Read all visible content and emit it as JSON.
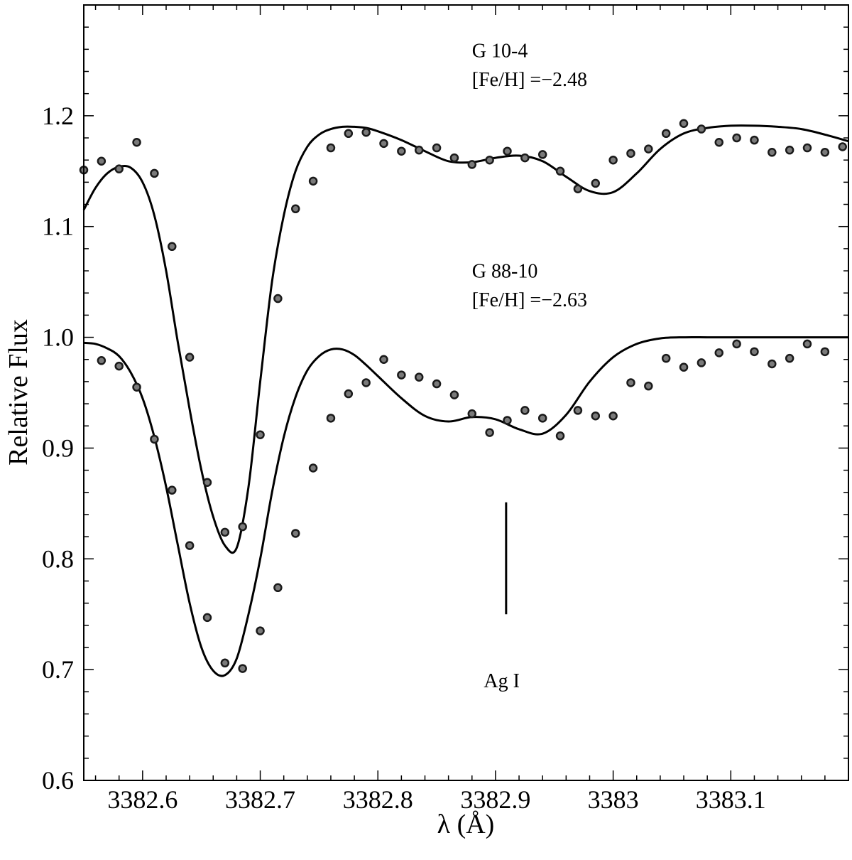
{
  "chart_data": {
    "type": "scatter",
    "xlabel": "λ (Å)",
    "ylabel": "Relative Flux",
    "xlim": [
      3382.55,
      3383.2
    ],
    "ylim": [
      0.6,
      1.3
    ],
    "x_ticks": [
      3382.6,
      3382.7,
      3382.8,
      3382.9,
      3383.0,
      3383.1
    ],
    "x_tick_labels": [
      "3382.6",
      "3382.7",
      "3382.8",
      "3382.9",
      "3383",
      "3383.1"
    ],
    "y_ticks": [
      0.6,
      0.7,
      0.8,
      0.9,
      1.0,
      1.1,
      1.2
    ],
    "y_tick_labels": [
      "0.6",
      "0.7",
      "0.8",
      "0.9",
      "1.0",
      "1.1",
      "1.2"
    ],
    "annotations": [
      {
        "text": "G 10-4",
        "x": 3382.88,
        "y": 1.253
      },
      {
        "text": "[Fe/H] =−2.48",
        "x": 3382.88,
        "y": 1.227
      },
      {
        "text": "G 88-10",
        "x": 3382.88,
        "y": 1.054
      },
      {
        "text": "[Fe/H] =−2.63",
        "x": 3382.88,
        "y": 1.028
      },
      {
        "text": "Ag I",
        "x": 3382.89,
        "y": 0.684
      }
    ],
    "line_marker": {
      "x": 3382.909,
      "y0": 0.75,
      "y1": 0.851,
      "label": "Ag I"
    },
    "series": [
      {
        "role": "observed",
        "star": "G 10-4",
        "x": [
          3382.55,
          3382.565,
          3382.58,
          3382.595,
          3382.61,
          3382.625,
          3382.64,
          3382.655,
          3382.67,
          3382.685,
          3382.7,
          3382.715,
          3382.73,
          3382.745,
          3382.76,
          3382.775,
          3382.79,
          3382.805,
          3382.82,
          3382.835,
          3382.85,
          3382.865,
          3382.88,
          3382.895,
          3382.91,
          3382.925,
          3382.94,
          3382.955,
          3382.97,
          3382.985,
          3383.0,
          3383.015,
          3383.03,
          3383.045,
          3383.06,
          3383.075,
          3383.09,
          3383.105,
          3383.12,
          3383.135,
          3383.15,
          3383.165,
          3383.18,
          3383.195
        ],
        "y": [
          1.151,
          1.159,
          1.152,
          1.176,
          1.148,
          1.082,
          0.982,
          0.869,
          0.824,
          0.829,
          0.912,
          1.035,
          1.116,
          1.141,
          1.171,
          1.184,
          1.185,
          1.175,
          1.168,
          1.169,
          1.171,
          1.162,
          1.156,
          1.16,
          1.168,
          1.162,
          1.165,
          1.15,
          1.134,
          1.139,
          1.16,
          1.166,
          1.17,
          1.184,
          1.193,
          1.188,
          1.176,
          1.18,
          1.178,
          1.167,
          1.169,
          1.171,
          1.167,
          1.172
        ]
      },
      {
        "role": "observed",
        "star": "G 88-10",
        "x": [
          3382.565,
          3382.58,
          3382.595,
          3382.61,
          3382.625,
          3382.64,
          3382.655,
          3382.67,
          3382.685,
          3382.7,
          3382.715,
          3382.73,
          3382.745,
          3382.76,
          3382.775,
          3382.79,
          3382.805,
          3382.82,
          3382.835,
          3382.85,
          3382.865,
          3382.88,
          3382.895,
          3382.91,
          3382.925,
          3382.94,
          3382.955,
          3382.97,
          3382.985,
          3383.0,
          3383.015,
          3383.03,
          3383.045,
          3383.06,
          3383.075,
          3383.09,
          3383.105,
          3383.12,
          3383.135,
          3383.15,
          3383.165,
          3383.18
        ],
        "y": [
          0.979,
          0.974,
          0.955,
          0.908,
          0.862,
          0.812,
          0.747,
          0.706,
          0.701,
          0.735,
          0.774,
          0.823,
          0.882,
          0.927,
          0.949,
          0.959,
          0.98,
          0.966,
          0.964,
          0.958,
          0.948,
          0.931,
          0.914,
          0.925,
          0.934,
          0.927,
          0.911,
          0.934,
          0.929,
          0.929,
          0.959,
          0.956,
          0.981,
          0.973,
          0.977,
          0.986,
          0.994,
          0.987,
          0.976,
          0.981,
          0.994,
          0.987
        ]
      },
      {
        "role": "synthetic",
        "star": "G 10-4",
        "x": [
          3382.55,
          3382.56,
          3382.57,
          3382.58,
          3382.59,
          3382.6,
          3382.61,
          3382.62,
          3382.63,
          3382.64,
          3382.65,
          3382.66,
          3382.67,
          3382.68,
          3382.69,
          3382.7,
          3382.71,
          3382.72,
          3382.73,
          3382.74,
          3382.75,
          3382.76,
          3382.77,
          3382.78,
          3382.79,
          3382.8,
          3382.82,
          3382.84,
          3382.86,
          3382.88,
          3382.9,
          3382.92,
          3382.94,
          3382.96,
          3382.98,
          3383.0,
          3383.02,
          3383.04,
          3383.06,
          3383.08,
          3383.1,
          3383.12,
          3383.14,
          3383.16,
          3383.18,
          3383.2
        ],
        "y": [
          1.115,
          1.135,
          1.148,
          1.154,
          1.153,
          1.14,
          1.11,
          1.06,
          0.995,
          0.935,
          0.88,
          0.838,
          0.812,
          0.81,
          0.865,
          0.96,
          1.05,
          1.11,
          1.15,
          1.172,
          1.183,
          1.188,
          1.19,
          1.19,
          1.189,
          1.186,
          1.178,
          1.168,
          1.159,
          1.158,
          1.162,
          1.164,
          1.159,
          1.145,
          1.132,
          1.131,
          1.148,
          1.17,
          1.184,
          1.189,
          1.191,
          1.191,
          1.19,
          1.188,
          1.183,
          1.177
        ]
      },
      {
        "role": "synthetic",
        "star": "G 88-10",
        "x": [
          3382.55,
          3382.56,
          3382.57,
          3382.58,
          3382.59,
          3382.6,
          3382.61,
          3382.62,
          3382.63,
          3382.64,
          3382.65,
          3382.66,
          3382.67,
          3382.68,
          3382.69,
          3382.7,
          3382.71,
          3382.72,
          3382.73,
          3382.74,
          3382.75,
          3382.76,
          3382.77,
          3382.78,
          3382.79,
          3382.8,
          3382.82,
          3382.84,
          3382.86,
          3382.88,
          3382.9,
          3382.92,
          3382.94,
          3382.96,
          3382.98,
          3383.0,
          3383.02,
          3383.04,
          3383.06,
          3383.08,
          3383.1,
          3383.12,
          3383.14,
          3383.16,
          3383.18,
          3383.2
        ],
        "y": [
          0.995,
          0.994,
          0.99,
          0.983,
          0.968,
          0.945,
          0.91,
          0.865,
          0.812,
          0.76,
          0.72,
          0.699,
          0.695,
          0.71,
          0.75,
          0.8,
          0.86,
          0.91,
          0.946,
          0.97,
          0.983,
          0.989,
          0.989,
          0.984,
          0.975,
          0.965,
          0.945,
          0.929,
          0.924,
          0.928,
          0.926,
          0.917,
          0.913,
          0.93,
          0.96,
          0.982,
          0.994,
          0.999,
          1.0,
          1.0,
          1.0,
          1.0,
          1.0,
          1.0,
          1.0,
          1.0
        ]
      }
    ]
  }
}
